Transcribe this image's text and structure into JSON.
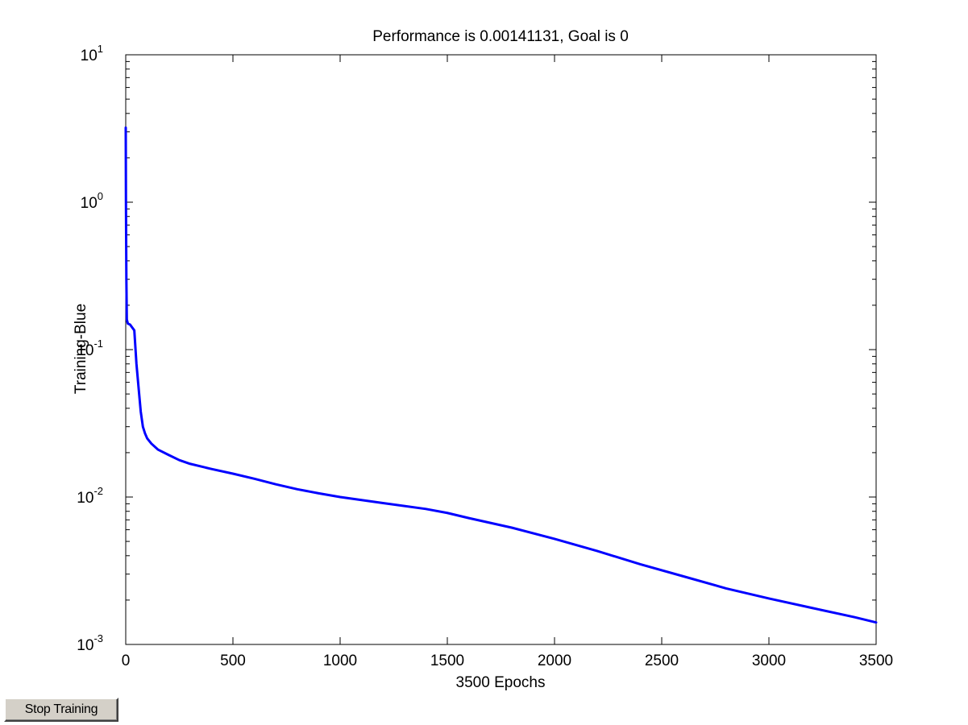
{
  "chart_data": {
    "type": "line",
    "title": "Performance is 0.00141131, Goal is 0",
    "xlabel": "3500 Epochs",
    "ylabel": "Training-Blue",
    "xlim": [
      0,
      3500
    ],
    "ylim": [
      0.001,
      10
    ],
    "yscale": "log",
    "grid": false,
    "x_ticks": [
      "0",
      "500",
      "1000",
      "1500",
      "2000",
      "2500",
      "3000",
      "3500"
    ],
    "x_tick_values": [
      0,
      500,
      1000,
      1500,
      2000,
      2500,
      3000,
      3500
    ],
    "y_ticks": [
      {
        "value": 10,
        "base": "10",
        "exp": "1"
      },
      {
        "value": 1,
        "base": "10",
        "exp": "0"
      },
      {
        "value": 0.1,
        "base": "10",
        "exp": "-1"
      },
      {
        "value": 0.01,
        "base": "10",
        "exp": "-2"
      },
      {
        "value": 0.001,
        "base": "10",
        "exp": "-3"
      }
    ],
    "series": [
      {
        "color": "#0000ff",
        "x": [
          0,
          1,
          3,
          5,
          10,
          20,
          40,
          50,
          60,
          70,
          80,
          90,
          100,
          120,
          150,
          200,
          250,
          300,
          400,
          500,
          600,
          700,
          800,
          900,
          1000,
          1200,
          1400,
          1500,
          1600,
          1800,
          2000,
          2200,
          2400,
          2600,
          2800,
          3000,
          3200,
          3400,
          3500
        ],
        "y": [
          3.2,
          1.0,
          0.3,
          0.16,
          0.15,
          0.148,
          0.135,
          0.08,
          0.055,
          0.038,
          0.03,
          0.027,
          0.025,
          0.023,
          0.021,
          0.0193,
          0.0178,
          0.0168,
          0.0155,
          0.0144,
          0.0133,
          0.0122,
          0.0113,
          0.0106,
          0.01,
          0.0091,
          0.0083,
          0.0078,
          0.0072,
          0.0062,
          0.0052,
          0.0043,
          0.0035,
          0.0029,
          0.0024,
          0.00205,
          0.00177,
          0.00153,
          0.00141
        ]
      }
    ]
  },
  "controls": {
    "stop_label": "Stop Training"
  }
}
